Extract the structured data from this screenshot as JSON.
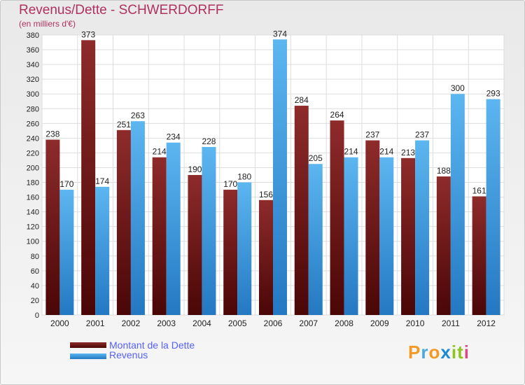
{
  "chart_data": {
    "type": "bar",
    "title": "Revenus/Dette - SCHWERDORFF",
    "subtitle": "(en milliers d'€)",
    "categories": [
      "2000",
      "2001",
      "2002",
      "2003",
      "2004",
      "2005",
      "2006",
      "2007",
      "2008",
      "2009",
      "2010",
      "2011",
      "2012"
    ],
    "series": [
      {
        "name": "Montant de la Dette",
        "color": "#7a1c1c",
        "values": [
          238,
          373,
          251,
          214,
          190,
          170,
          156,
          284,
          264,
          237,
          213,
          188,
          161
        ]
      },
      {
        "name": "Revenus",
        "color": "#3e9ee0",
        "values": [
          170,
          174,
          263,
          234,
          228,
          180,
          374,
          205,
          214,
          214,
          237,
          300,
          293
        ]
      }
    ],
    "ylim": [
      0,
      380
    ],
    "ytick_step": 20,
    "grid": true,
    "legend": "bottom-left"
  },
  "brand": {
    "p": "P",
    "r": "r",
    "o": "o",
    "x": "x",
    "i": "i",
    "t": "t",
    "i2": "i"
  }
}
